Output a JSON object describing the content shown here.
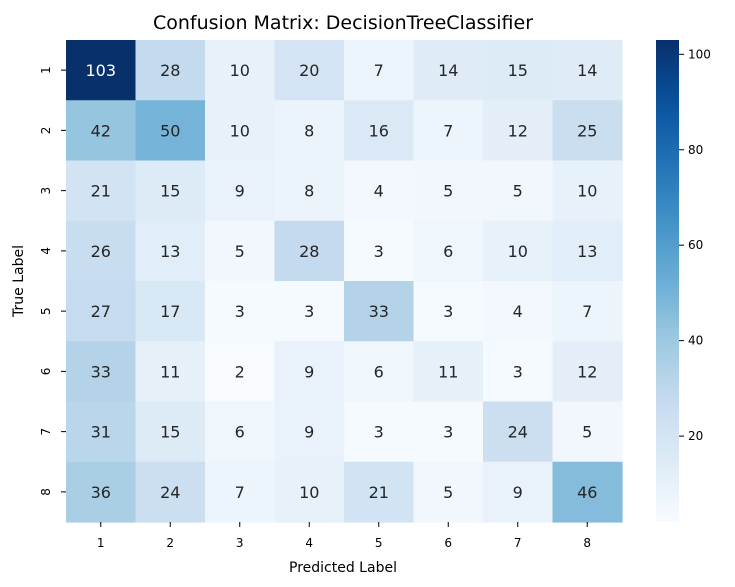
{
  "chart_data": {
    "type": "heatmap",
    "title": "Confusion Matrix: DecisionTreeClassifier",
    "xlabel": "Predicted Label",
    "ylabel": "True Label",
    "x_categories": [
      "1",
      "2",
      "3",
      "4",
      "5",
      "6",
      "7",
      "8"
    ],
    "y_categories": [
      "1",
      "2",
      "3",
      "4",
      "5",
      "6",
      "7",
      "8"
    ],
    "values": [
      [
        103,
        28,
        10,
        20,
        7,
        14,
        15,
        14
      ],
      [
        42,
        50,
        10,
        8,
        16,
        7,
        12,
        25
      ],
      [
        21,
        15,
        9,
        8,
        4,
        5,
        5,
        10
      ],
      [
        26,
        13,
        5,
        28,
        3,
        6,
        10,
        13
      ],
      [
        27,
        17,
        3,
        3,
        33,
        3,
        4,
        7
      ],
      [
        33,
        11,
        2,
        9,
        6,
        11,
        3,
        12
      ],
      [
        31,
        15,
        6,
        9,
        3,
        3,
        24,
        5
      ],
      [
        36,
        24,
        7,
        10,
        21,
        5,
        9,
        46
      ]
    ],
    "colormap": "Blues",
    "color_range": [
      2,
      103
    ],
    "colorbar_ticks": [
      20,
      40,
      60,
      80,
      100
    ],
    "colorbar_tick_labels": [
      "20",
      "40",
      "60",
      "80",
      "100"
    ],
    "grid": false,
    "colorbar_position": "right"
  }
}
